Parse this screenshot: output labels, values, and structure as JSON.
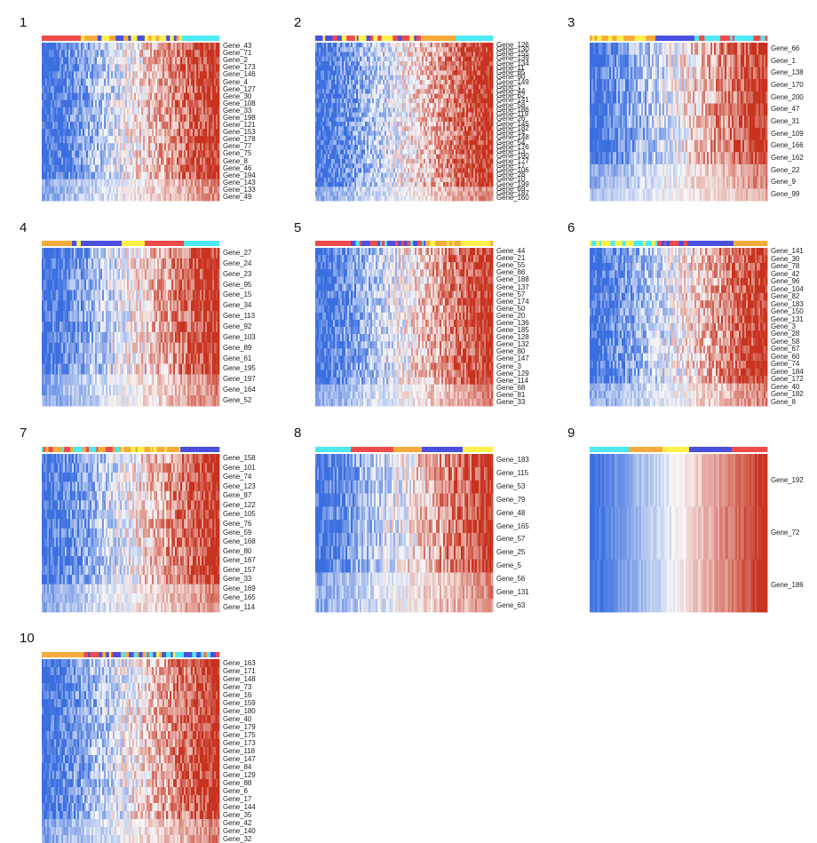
{
  "chart_data": [
    {
      "type": "heatmap",
      "panel_label": "1",
      "column_groups": [
        "red",
        "yellow/blue mixed",
        "cyan"
      ],
      "genes": [
        "Gene_43",
        "Gene_71",
        "Gene_2",
        "Gene_173",
        "Gene_146",
        "Gene_4",
        "Gene_127",
        "Gene_30",
        "Gene_108",
        "Gene_33",
        "Gene_198",
        "Gene_121",
        "Gene_153",
        "Gene_178",
        "Gene_77",
        "Gene_75",
        "Gene_8",
        "Gene_46",
        "Gene_194",
        "Gene_143",
        "Gene_133",
        "Gene_49"
      ]
    },
    {
      "type": "heatmap",
      "panel_label": "2",
      "column_groups": [
        "blue/red/yellow mixed",
        "orange",
        "cyan"
      ],
      "genes": [
        "Gene_126",
        "Gene_130",
        "Gene_155",
        "Gene_139",
        "Gene_134",
        "Gene_11",
        "Gene_85",
        "Gene_90",
        "Gene_149",
        "Gene_7",
        "Gene_44",
        "Gene_62",
        "Gene_141",
        "Gene_58",
        "Gene_186",
        "Gene_119",
        "Gene_26",
        "Gene_145",
        "Gene_182",
        "Gene_14",
        "Gene_148",
        "Gene_54",
        "Gene_176",
        "Gene_13",
        "Gene_190",
        "Gene_177",
        "Gene_17",
        "Gene_106",
        "Gene_28",
        "Gene_10",
        "Gene_199",
        "Gene_69",
        "Gene_187",
        "Gene_160"
      ]
    },
    {
      "type": "heatmap",
      "panel_label": "3",
      "column_groups": [
        "yellow/orange mixed",
        "blue",
        "red/cyan mixed"
      ],
      "genes": [
        "Gene_66",
        "Gene_1",
        "Gene_138",
        "Gene_170",
        "Gene_200",
        "Gene_47",
        "Gene_31",
        "Gene_109",
        "Gene_166",
        "Gene_162",
        "Gene_22",
        "Gene_9",
        "Gene_99"
      ]
    },
    {
      "type": "heatmap",
      "panel_label": "4",
      "column_groups": [
        "orange",
        "blue",
        "yellow",
        "red",
        "cyan"
      ],
      "genes": [
        "Gene_27",
        "Gene_24",
        "Gene_23",
        "Gene_95",
        "Gene_15",
        "Gene_34",
        "Gene_113",
        "Gene_92",
        "Gene_103",
        "Gene_89",
        "Gene_61",
        "Gene_195",
        "Gene_197",
        "Gene_164",
        "Gene_52"
      ]
    },
    {
      "type": "heatmap",
      "panel_label": "5",
      "column_groups": [
        "red",
        "blue/cyan mixed",
        "yellow/orange mixed"
      ],
      "genes": [
        "Gene_44",
        "Gene_21",
        "Gene_55",
        "Gene_86",
        "Gene_188",
        "Gene_137",
        "Gene_57",
        "Gene_174",
        "Gene_50",
        "Gene_20",
        "Gene_136",
        "Gene_185",
        "Gene_128",
        "Gene_132",
        "Gene_80",
        "Gene_147",
        "Gene_3",
        "Gene_129",
        "Gene_114",
        "Gene_68",
        "Gene_81",
        "Gene_33"
      ]
    },
    {
      "type": "heatmap",
      "panel_label": "6",
      "column_groups": [
        "cyan/yellow mixed",
        "red",
        "blue",
        "orange"
      ],
      "genes": [
        "Gene_141",
        "Gene_30",
        "Gene_78",
        "Gene_42",
        "Gene_96",
        "Gene_104",
        "Gene_82",
        "Gene_183",
        "Gene_150",
        "Gene_131",
        "Gene_3",
        "Gene_28",
        "Gene_58",
        "Gene_67",
        "Gene_60",
        "Gene_74",
        "Gene_184",
        "Gene_172",
        "Gene_40",
        "Gene_182",
        "Gene_8"
      ]
    },
    {
      "type": "heatmap",
      "panel_label": "7",
      "column_groups": [
        "cyan/red mixed",
        "orange/yellow mixed",
        "blue"
      ],
      "genes": [
        "Gene_158",
        "Gene_101",
        "Gene_74",
        "Gene_123",
        "Gene_87",
        "Gene_122",
        "Gene_105",
        "Gene_76",
        "Gene_59",
        "Gene_168",
        "Gene_80",
        "Gene_167",
        "Gene_157",
        "Gene_33",
        "Gene_169",
        "Gene_165",
        "Gene_114"
      ]
    },
    {
      "type": "heatmap",
      "panel_label": "8",
      "column_groups": [
        "cyan",
        "red",
        "orange",
        "blue",
        "yellow"
      ],
      "genes": [
        "Gene_183",
        "Gene_115",
        "Gene_53",
        "Gene_79",
        "Gene_48",
        "Gene_165",
        "Gene_57",
        "Gene_25",
        "Gene_5",
        "Gene_56",
        "Gene_131",
        "Gene_63"
      ]
    },
    {
      "type": "heatmap",
      "panel_label": "9",
      "column_groups": [
        "cyan",
        "orange",
        "yellow",
        "blue",
        "red"
      ],
      "genes": [
        "Gene_192",
        "Gene_72",
        "Gene_186"
      ]
    },
    {
      "type": "heatmap",
      "panel_label": "10",
      "column_groups": [
        "orange",
        "mixed"
      ],
      "genes": [
        "Gene_163",
        "Gene_171",
        "Gene_148",
        "Gene_73",
        "Gene_16",
        "Gene_159",
        "Gene_180",
        "Gene_40",
        "Gene_179",
        "Gene_175",
        "Gene_173",
        "Gene_118",
        "Gene_147",
        "Gene_84",
        "Gene_129",
        "Gene_88",
        "Gene_6",
        "Gene_17",
        "Gene_144",
        "Gene_35",
        "Gene_42",
        "Gene_140",
        "Gene_32"
      ]
    }
  ],
  "colors": {
    "low": "#3b6fe0",
    "mid": "#f7f7f7",
    "high": "#c8321e",
    "annot": {
      "red": "#ef4b4b",
      "blue": "#4b4fe0",
      "yellow": "#fff04a",
      "orange": "#f5ab3c",
      "cyan": "#4de8f0"
    }
  }
}
